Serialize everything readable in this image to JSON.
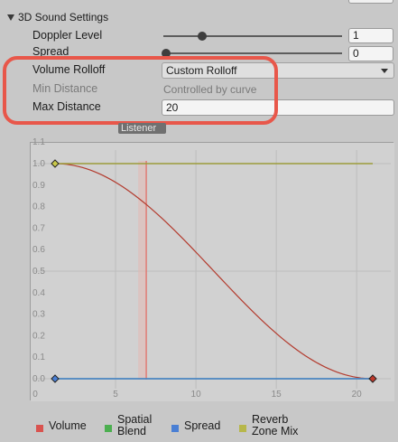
{
  "section": {
    "title": "3D Sound Settings"
  },
  "properties": {
    "doppler": {
      "label": "Doppler Level",
      "value": "1",
      "slider_fraction": 0.2
    },
    "spread": {
      "label": "Spread",
      "value": "0",
      "slider_fraction": 0.0
    },
    "volume_rolloff": {
      "label": "Volume Rolloff",
      "value": "Custom Rolloff"
    },
    "min_distance": {
      "label": "Min Distance",
      "value": "Controlled by curve"
    },
    "max_distance": {
      "label": "Max Distance",
      "value": "20"
    }
  },
  "graph": {
    "listener_label": "Listener",
    "listener_distance": 6.8,
    "y_ticks": [
      "1.1",
      "1.0",
      "0.9",
      "0.8",
      "0.7",
      "0.6",
      "0.5",
      "0.4",
      "0.3",
      "0.2",
      "0.1",
      "0.0"
    ],
    "x_ticks": [
      "0",
      "5",
      "10",
      "15",
      "20"
    ]
  },
  "chart_data": {
    "type": "line",
    "xlim": [
      0,
      21
    ],
    "ylim": [
      0,
      1.1
    ],
    "series": [
      {
        "name": "Volume",
        "color": "#b33b2e",
        "x": [
          1,
          3,
          5,
          7,
          9,
          11,
          13,
          15,
          17,
          19,
          21
        ],
        "y": [
          1.0,
          0.97,
          0.9,
          0.79,
          0.65,
          0.5,
          0.35,
          0.21,
          0.1,
          0.03,
          0.0
        ]
      },
      {
        "name": "Spatial Blend",
        "color": "#4caf50",
        "x": [
          1,
          21
        ],
        "y": [
          0.0,
          0.0
        ]
      },
      {
        "name": "Spread",
        "color": "#4a7fd4",
        "x": [
          1,
          21
        ],
        "y": [
          0.0,
          0.0
        ]
      },
      {
        "name": "Reverb Zone Mix",
        "color": "#9c9c3a",
        "x": [
          1,
          21
        ],
        "y": [
          1.0,
          1.0
        ]
      }
    ]
  },
  "legend": [
    {
      "label": "Volume",
      "color": "#d9534f"
    },
    {
      "label": "Spatial\nBlend",
      "color": "#4caf50"
    },
    {
      "label": "Spread",
      "color": "#4a7fd4"
    },
    {
      "label": "Reverb\nZone Mix",
      "color": "#b7b74a"
    }
  ]
}
